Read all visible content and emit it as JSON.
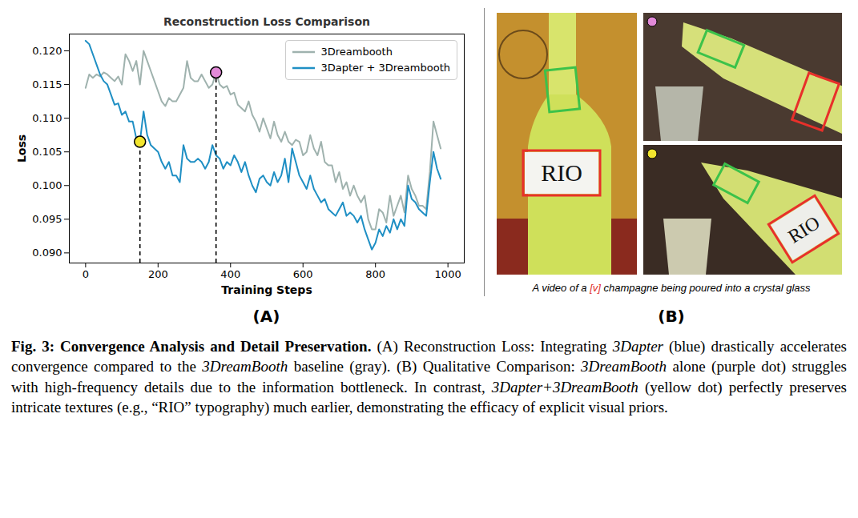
{
  "chart_data": {
    "type": "line",
    "title": "Reconstruction Loss Comparison",
    "x_label": "Training Steps",
    "y_label": "Loss",
    "x": [
      0,
      10,
      20,
      30,
      40,
      50,
      60,
      70,
      80,
      90,
      100,
      110,
      120,
      130,
      140,
      150,
      160,
      170,
      180,
      190,
      200,
      210,
      220,
      230,
      240,
      250,
      260,
      270,
      280,
      290,
      300,
      310,
      320,
      330,
      340,
      350,
      360,
      370,
      380,
      390,
      400,
      410,
      420,
      430,
      440,
      450,
      460,
      470,
      480,
      490,
      500,
      510,
      520,
      530,
      540,
      550,
      560,
      570,
      580,
      590,
      600,
      610,
      620,
      630,
      640,
      650,
      660,
      670,
      680,
      690,
      700,
      710,
      720,
      730,
      740,
      750,
      760,
      770,
      780,
      790,
      800,
      810,
      820,
      830,
      840,
      850,
      860,
      870,
      880,
      890,
      900,
      910,
      920,
      930,
      940,
      950,
      960,
      970,
      980
    ],
    "series": [
      {
        "name": "3Dreambooth",
        "color": "#9fb2ae",
        "values": [
          0.1145,
          0.1165,
          0.116,
          0.1165,
          0.1162,
          0.1168,
          0.1165,
          0.116,
          0.1155,
          0.1162,
          0.115,
          0.1195,
          0.1185,
          0.117,
          0.1185,
          0.115,
          0.12,
          0.1185,
          0.117,
          0.1155,
          0.114,
          0.1125,
          0.1118,
          0.113,
          0.1125,
          0.1125,
          0.1135,
          0.1145,
          0.1185,
          0.116,
          0.1155,
          0.1155,
          0.1165,
          0.1155,
          0.1145,
          0.115,
          0.1168,
          0.115,
          0.1145,
          0.1148,
          0.1135,
          0.1138,
          0.112,
          0.1115,
          0.111,
          0.1125,
          0.1105,
          0.1095,
          0.108,
          0.11,
          0.1085,
          0.107,
          0.1095,
          0.1075,
          0.1065,
          0.108,
          0.1065,
          0.106,
          0.1068,
          0.1065,
          0.1045,
          0.105,
          0.1075,
          0.1055,
          0.1045,
          0.1065,
          0.1035,
          0.103,
          0.103,
          0.1005,
          0.102,
          0.0995,
          0.1005,
          0.0985,
          0.1,
          0.0985,
          0.0975,
          0.0985,
          0.095,
          0.0935,
          0.0935,
          0.0965,
          0.096,
          0.0945,
          0.0985,
          0.0955,
          0.097,
          0.0985,
          0.096,
          0.1015,
          0.0995,
          0.0985,
          0.097,
          0.097,
          0.0965,
          0.102,
          0.1095,
          0.1075,
          0.1055
        ]
      },
      {
        "name": "3Dapter + 3Dreambooth",
        "color": "#1f8fc4",
        "values": [
          0.1215,
          0.121,
          0.1195,
          0.118,
          0.1165,
          0.1155,
          0.115,
          0.1135,
          0.112,
          0.1122,
          0.1105,
          0.111,
          0.1095,
          0.1095,
          0.107,
          0.1065,
          0.111,
          0.1075,
          0.106,
          0.1055,
          0.105,
          0.1035,
          0.1025,
          0.1035,
          0.1015,
          0.1015,
          0.1005,
          0.106,
          0.104,
          0.1035,
          0.1035,
          0.104,
          0.1035,
          0.1025,
          0.1035,
          0.106,
          0.1045,
          0.104,
          0.1025,
          0.1035,
          0.103,
          0.1045,
          0.1035,
          0.102,
          0.1035,
          0.1015,
          0.1,
          0.099,
          0.101,
          0.1015,
          0.1005,
          0.1,
          0.102,
          0.1005,
          0.1015,
          0.104,
          0.1005,
          0.1055,
          0.1035,
          0.1015,
          0.1005,
          0.0995,
          0.1015,
          0.0995,
          0.0985,
          0.0975,
          0.098,
          0.0965,
          0.096,
          0.0955,
          0.0965,
          0.0975,
          0.0955,
          0.096,
          0.0955,
          0.0945,
          0.0955,
          0.0935,
          0.092,
          0.0905,
          0.0915,
          0.0935,
          0.0925,
          0.094,
          0.093,
          0.095,
          0.0935,
          0.095,
          0.094,
          0.1,
          0.098,
          0.0975,
          0.0965,
          0.096,
          0.0955,
          0.1005,
          0.105,
          0.1025,
          0.101
        ]
      }
    ],
    "highlights": [
      {
        "x": 150,
        "y": 0.1065,
        "color": "#f2e52e"
      },
      {
        "x": 360,
        "y": 0.1168,
        "color": "#e28ad8"
      }
    ],
    "xlim": [
      -45,
      1045
    ],
    "ylim": [
      0.0885,
      0.1225
    ],
    "xticks": [
      0,
      200,
      400,
      600,
      800,
      1000
    ],
    "yticks": [
      {
        "value": 0.09,
        "label": "0.090"
      },
      0.095,
      {
        "value": 0.1,
        "label": "0.100"
      },
      0.105,
      {
        "value": 0.11,
        "label": "0.110"
      },
      0.115,
      {
        "value": 0.12,
        "label": "0.120"
      }
    ],
    "grid": false,
    "legend": "upper right"
  },
  "panel_labels": {
    "a": "(A)",
    "b": "(B)"
  },
  "panel_b": {
    "prompt": [
      {
        "text": "A video of a "
      },
      {
        "text": "[v]",
        "color": "#e0302a"
      },
      {
        "text": " champagne being poured into a crystal glass"
      }
    ],
    "bottle_text": "RIO"
  },
  "caption": [
    {
      "text": "Fig. 3: Convergence Analysis and Detail Preservation.",
      "style": "bold"
    },
    {
      "text": " (A) Reconstruction Loss: Integrating "
    },
    {
      "text": "3Dapter",
      "style": "italic"
    },
    {
      "text": " (blue) drastically accelerates convergence compared to the "
    },
    {
      "text": "3DreamBooth",
      "style": "italic"
    },
    {
      "text": " baseline (gray). (B) Qualitative Comparison: "
    },
    {
      "text": "3DreamBooth",
      "style": "italic"
    },
    {
      "text": " alone (purple dot) struggles with high-frequency details due to the information bottleneck. In contrast, "
    },
    {
      "text": "3Dapter+3DreamBooth",
      "style": "italic"
    },
    {
      "text": " (yellow dot) perfectly preserves intricate textures (e.g., “RIO” typography) much earlier, demonstrating the efficacy of explicit visual priors."
    }
  ]
}
